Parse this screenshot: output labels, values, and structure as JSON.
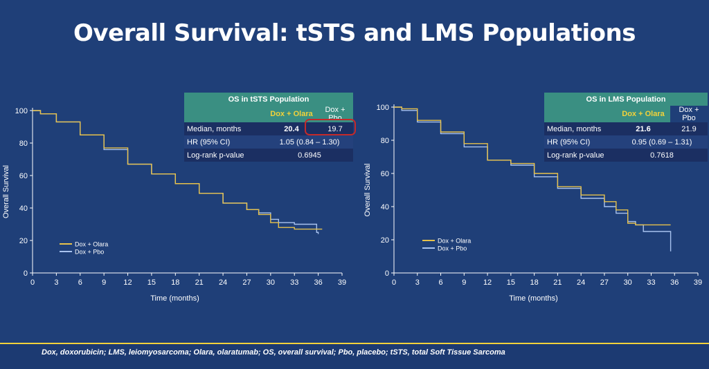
{
  "title": "Overall Survival: tSTS and LMS Populations",
  "footnote": "Dox, doxorubicin; LMS, leiomyosarcoma; Olara, olaratumab; OS, overall survival; Pbo, placebo; tSTS, total Soft Tissue Sarcoma",
  "colors": {
    "olara": "#e8c24a",
    "pbo": "#a9c3ef",
    "background": "#1f3f78",
    "table_header": "#3a8f82",
    "highlight": "#c42a2a"
  },
  "tables": [
    {
      "title": "OS in tSTS Population",
      "col1": "Dox + Olara",
      "col2": "Dox + Pbo",
      "median_label": "Median, months",
      "median1": "20.4",
      "median2": "19.7",
      "hr_label": "HR (95% CI)",
      "hr_value": "1.05 (0.84 – 1.30)",
      "p_label": "Log-rank p-value",
      "p_value": "0.6945"
    },
    {
      "title": "OS in LMS Population",
      "col1": "Dox + Olara",
      "col2": "Dox + Pbo",
      "median_label": "Median, months",
      "median1": "21.6",
      "median2": "21.9",
      "hr_label": "HR (95% CI)",
      "hr_value": "0.95 (0.69 – 1.31)",
      "p_label": "Log-rank p-value",
      "p_value": "0.7618"
    }
  ],
  "chart_data": [
    {
      "type": "line",
      "title": "OS in tSTS Population",
      "xlabel": "Time (months)",
      "ylabel": "Overall Survival",
      "xlim": [
        0,
        39
      ],
      "ylim": [
        0,
        100
      ],
      "xticks": [
        0,
        3,
        6,
        9,
        12,
        15,
        18,
        21,
        24,
        27,
        30,
        33,
        36,
        39
      ],
      "yticks": [
        0,
        20,
        40,
        60,
        80,
        100
      ],
      "legend": [
        "Dox + Olara",
        "Dox + Pbo"
      ],
      "series": [
        {
          "name": "Dox + Olara",
          "x": [
            0,
            1,
            3,
            6,
            9,
            12,
            15,
            18,
            21,
            24,
            27,
            28.5,
            30,
            31,
            33,
            35,
            36.5
          ],
          "y": [
            100,
            98,
            93,
            85,
            77,
            67,
            61,
            55,
            49,
            43,
            39,
            36,
            31,
            28,
            27,
            27,
            27
          ]
        },
        {
          "name": "Dox + Pbo",
          "x": [
            0,
            1,
            3,
            6,
            9,
            12,
            15,
            18,
            21,
            24,
            27,
            28.5,
            30,
            31,
            33,
            35,
            35.8,
            36
          ],
          "y": [
            100,
            98,
            93,
            85,
            76,
            67,
            61,
            55,
            49,
            43,
            39,
            37,
            33,
            31,
            30,
            30,
            25,
            24
          ]
        }
      ]
    },
    {
      "type": "line",
      "title": "OS in LMS Population",
      "xlabel": "Time (months)",
      "ylabel": "Overall Survival",
      "xlim": [
        0,
        39
      ],
      "ylim": [
        0,
        100
      ],
      "xticks": [
        0,
        3,
        6,
        9,
        12,
        15,
        18,
        21,
        24,
        27,
        30,
        33,
        36,
        39
      ],
      "yticks": [
        0,
        20,
        40,
        60,
        80,
        100
      ],
      "legend": [
        "Dox + Olara",
        "Dox + Pbo"
      ],
      "series": [
        {
          "name": "Dox + Olara",
          "x": [
            0,
            1,
            3,
            6,
            9,
            12,
            15,
            18,
            21,
            24,
            27,
            28.5,
            30,
            31,
            33,
            35.5
          ],
          "y": [
            100,
            99,
            92,
            85,
            78,
            68,
            66,
            60,
            52,
            47,
            43,
            38,
            30,
            29,
            29,
            29
          ]
        },
        {
          "name": "Dox + Pbo",
          "x": [
            0,
            1,
            3,
            6,
            9,
            12,
            15,
            18,
            21,
            24,
            27,
            28.5,
            30,
            31,
            32,
            33,
            35.5,
            35.5
          ],
          "y": [
            100,
            98,
            91,
            84,
            76,
            68,
            65,
            58,
            51,
            45,
            40,
            36,
            31,
            29,
            25,
            25,
            25,
            13
          ]
        }
      ]
    }
  ]
}
